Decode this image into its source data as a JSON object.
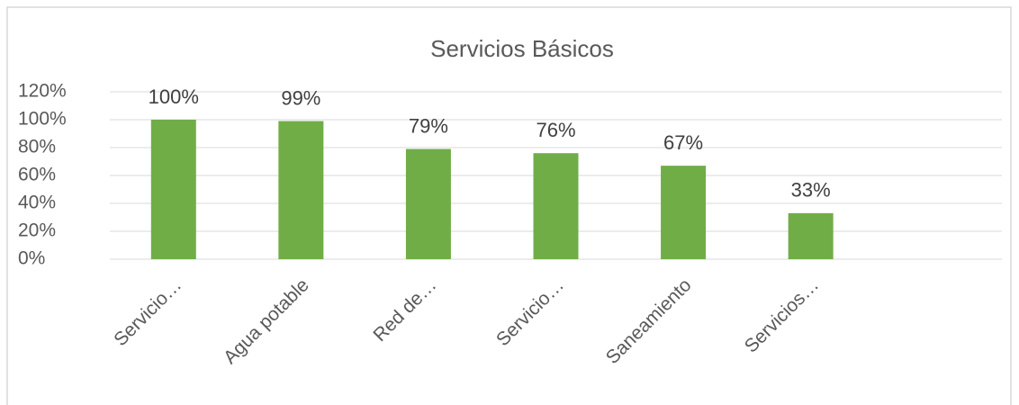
{
  "chart_data": {
    "type": "bar",
    "title": "Servicios Básicos",
    "categories": [
      "Servicio…",
      "Agua potable",
      "Red de…",
      "Servicio…",
      "Saneamiento",
      "Servicios…",
      null
    ],
    "values": [
      100,
      99,
      79,
      76,
      67,
      33,
      null
    ],
    "value_labels": [
      "100%",
      "99%",
      "79%",
      "76%",
      "67%",
      "33%",
      null
    ],
    "color": "#70ad47",
    "ylim": [
      0,
      120
    ],
    "yticks": [
      {
        "value": 0,
        "label": "0%"
      },
      {
        "value": 20,
        "label": "20%"
      },
      {
        "value": 40,
        "label": "40%"
      },
      {
        "value": 60,
        "label": "60%"
      },
      {
        "value": 80,
        "label": "80%"
      },
      {
        "value": 100,
        "label": "100%"
      },
      {
        "value": 120,
        "label": "120%"
      }
    ],
    "grid": true
  }
}
